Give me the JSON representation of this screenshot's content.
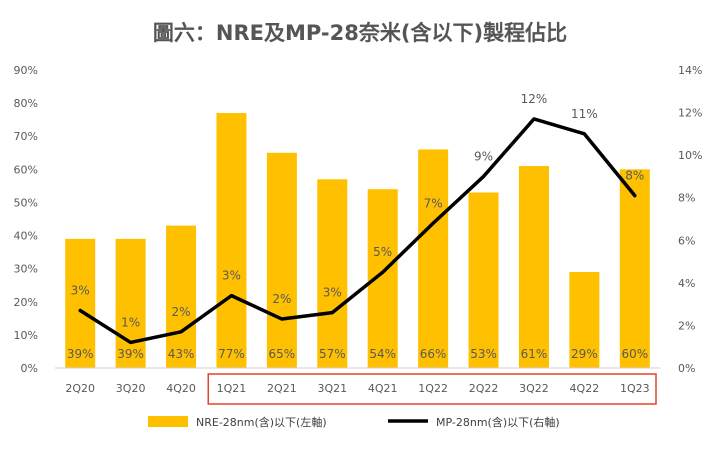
{
  "chart_data": {
    "type": "bar",
    "title": "圖六：NRE及MP-28奈米(含以下)製程佔比",
    "categories": [
      "2Q20",
      "3Q20",
      "4Q20",
      "1Q21",
      "2Q21",
      "3Q21",
      "4Q21",
      "1Q22",
      "2Q22",
      "3Q22",
      "4Q22",
      "1Q23"
    ],
    "series": [
      {
        "name": "NRE-28nm(含)以下(左軸)",
        "kind": "bar",
        "axis": "left",
        "color": "#FFC000",
        "values": [
          39,
          39,
          43,
          77,
          65,
          57,
          54,
          66,
          53,
          61,
          29,
          60
        ],
        "labels": [
          "39%",
          "39%",
          "43%",
          "77%",
          "65%",
          "57%",
          "54%",
          "66%",
          "53%",
          "61%",
          "29%",
          "60%"
        ]
      },
      {
        "name": "MP-28nm(含)以下(右軸)",
        "kind": "line",
        "axis": "right",
        "color": "#000000",
        "values": [
          2.7,
          1.2,
          1.7,
          3.4,
          2.3,
          2.6,
          4.5,
          6.8,
          9.0,
          11.7,
          11.0,
          8.1
        ],
        "labels": [
          "3%",
          "1%",
          "2%",
          "3%",
          "2%",
          "3%",
          "5%",
          "7%",
          "9%",
          "12%",
          "11%",
          "8%"
        ]
      }
    ],
    "left_axis": {
      "ylim": [
        0,
        90
      ],
      "ticks": [
        "0%",
        "10%",
        "20%",
        "30%",
        "40%",
        "50%",
        "60%",
        "70%",
        "80%",
        "90%"
      ]
    },
    "right_axis": {
      "ylim": [
        0,
        14
      ],
      "ticks": [
        "0%",
        "2%",
        "4%",
        "6%",
        "8%",
        "10%",
        "12%",
        "14%"
      ]
    },
    "highlight": {
      "from_category": "1Q21",
      "to_category": "1Q23",
      "color": "#E0462C"
    },
    "legend_placement": "bottom",
    "grid": false
  }
}
